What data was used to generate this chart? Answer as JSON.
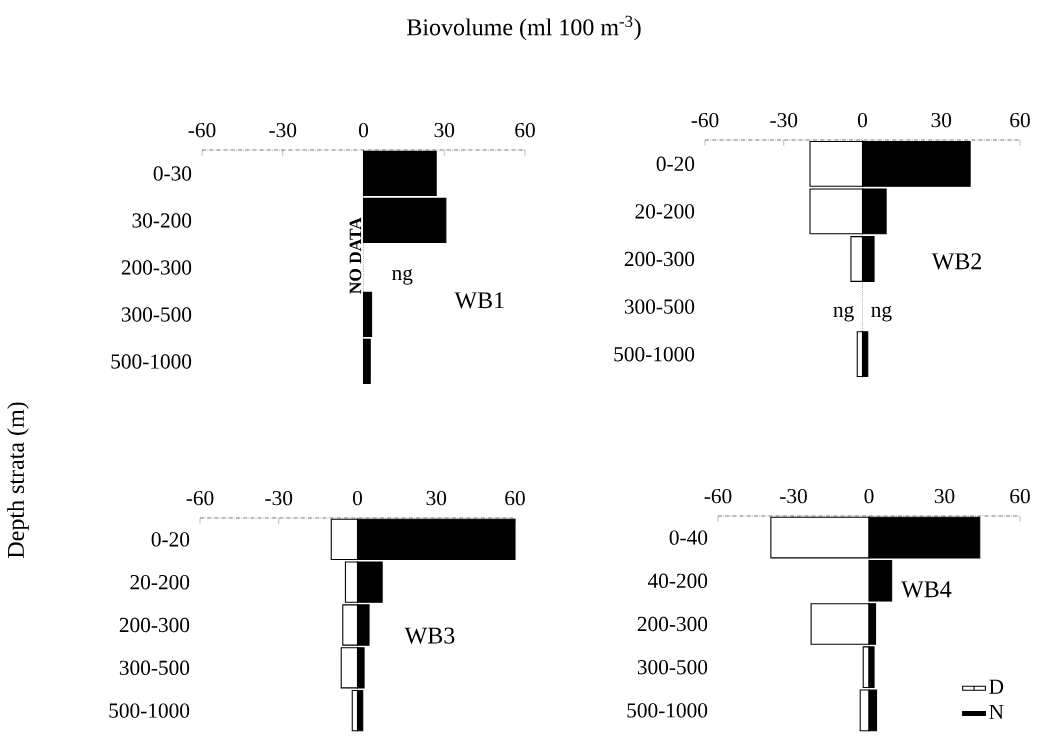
{
  "chart_data": [
    {
      "type": "bar",
      "orientation": "horizontal",
      "title": "WB1",
      "xlabel": "Biovolume (ml 100 m$^{-3}$)",
      "ylabel": "Depth strata (m)",
      "categories": [
        "0-30",
        "30-200",
        "200-300",
        "300-500",
        "500-1000"
      ],
      "series": [
        {
          "color": "#000000",
          "values": [
            27,
            30.6,
            null,
            3,
            2.5
          ]
        }
      ],
      "xlim": [
        -60,
        60
      ],
      "xticks": [
        -60,
        -30,
        0,
        30,
        60
      ],
      "annotations": [
        "NO DATA",
        "ng"
      ]
    },
    {
      "type": "bar",
      "orientation": "horizontal",
      "title": "WB2",
      "categories": [
        "0-20",
        "20-200",
        "200-300",
        "300-500",
        "500-1000"
      ],
      "series": [
        {
          "color": "#ffffff",
          "values": [
            -20,
            -20,
            -4.4,
            null,
            -2
          ]
        },
        {
          "color": "#000000",
          "values": [
            41,
            9,
            4.4,
            null,
            2
          ]
        }
      ],
      "xlim": [
        -60,
        60
      ],
      "xticks": [
        -60,
        -30,
        0,
        30,
        60
      ],
      "annotations": [
        "ng",
        "ng"
      ],
      "stacked": true
    },
    {
      "type": "bar",
      "orientation": "horizontal",
      "title": "WB3",
      "categories": [
        "0-20",
        "20-200",
        "200-300",
        "300-500",
        "500-1000"
      ],
      "series": [
        {
          "color": "#ffffff",
          "values": [
            -10,
            -4.6,
            -5.6,
            -6.2,
            -2
          ]
        },
        {
          "color": "#000000",
          "values": [
            60,
            9.4,
            4.4,
            2.5,
            2
          ]
        }
      ],
      "xlim": [
        -60,
        60
      ],
      "xticks": [
        -60,
        -30,
        0,
        30,
        60
      ],
      "stacked": true
    },
    {
      "type": "bar",
      "orientation": "horizontal",
      "title": "WB4",
      "legend": "bottom right",
      "categories": [
        "0-40",
        "40-200",
        "200-300",
        "300-500",
        "500-1000"
      ],
      "series": [
        {
          "name": "D",
          "color": "#ffffff",
          "values": [
            -39,
            null,
            -23,
            -2.3,
            -3.5
          ]
        },
        {
          "name": "N",
          "color": "#000000",
          "values": [
            44,
            9,
            2.6,
            2,
            3
          ]
        }
      ],
      "xlim": [
        -60,
        60
      ],
      "xticks": [
        -60,
        -30,
        0,
        30,
        60
      ],
      "stacked": true
    }
  ]
}
